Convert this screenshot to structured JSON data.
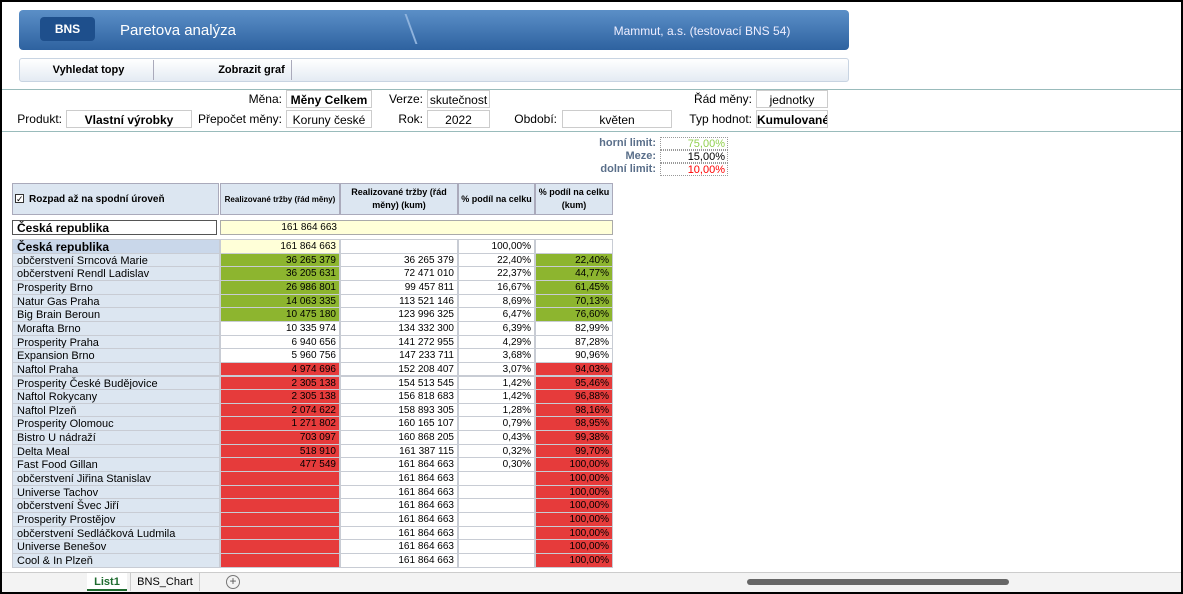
{
  "header": {
    "logo": "BNS",
    "title": "Paretova analýza",
    "company": "Mammut, a.s. (testovací BNS 54)"
  },
  "toolbar": [
    "Vyhledat topy",
    "Zobrazit graf"
  ],
  "filters": [
    {
      "label": "Měna:",
      "value": "Měny Celkem"
    },
    {
      "label": "Verze:",
      "value": "skutečnost"
    },
    {
      "label": "Řád měny:",
      "value": "jednotky"
    },
    {
      "label": "Produkt:",
      "value": "Vlastní výrobky"
    },
    {
      "label": "Přepočet měny:",
      "value": "Koruny české"
    },
    {
      "label": "Rok:",
      "value": "2022"
    },
    {
      "label": "Období:",
      "value": "květen"
    },
    {
      "label": "Typ hodnot:",
      "value": "Kumulované"
    }
  ],
  "limits": [
    {
      "label": "horní limit:",
      "value": "75,00%",
      "color": "#92d050"
    },
    {
      "label": "Meze:",
      "value": "15,00%",
      "color": "#000000"
    },
    {
      "label": "dolní limit:",
      "value": "10,00%",
      "color": "#ff0000"
    }
  ],
  "table": {
    "option": "Rozpad až na spodní úroveň",
    "columns": [
      "Realizované tržby (řád měny)",
      "Realizované tržby (řád měny) (kum)",
      "% podíl na celku",
      "% podíl na celku (kum)"
    ],
    "summary": {
      "label": "Česká republika",
      "value": "161 864 663"
    },
    "group": [
      "Česká republika",
      "161 864 663",
      null,
      "100,00%",
      null
    ],
    "rows": [
      {
        "cells": [
          "občerstvení Srncová Marie",
          "36 265 379",
          "36 265 379",
          "22,40%",
          "22,40%"
        ],
        "fills": [
          "#8db52f",
          "#8db52f"
        ]
      },
      {
        "cells": [
          "občerstvení Rendl Ladislav",
          "36 205 631",
          "72 471 010",
          "22,37%",
          "44,77%"
        ],
        "fills": [
          "#8db52f",
          "#8db52f"
        ]
      },
      {
        "cells": [
          "Prosperity Brno",
          "26 986 801",
          "99 457 811",
          "16,67%",
          "61,45%"
        ],
        "fills": [
          "#8db52f",
          "#8db52f"
        ]
      },
      {
        "cells": [
          "Natur Gas Praha",
          "14 063 335",
          "113 521 146",
          "8,69%",
          "70,13%"
        ],
        "fills": [
          "#8db52f",
          "#8db52f"
        ]
      },
      {
        "cells": [
          "Big Brain Beroun",
          "10 475 180",
          "123 996 325",
          "6,47%",
          "76,60%"
        ],
        "fills": [
          "#8db52f",
          "#8db52f"
        ]
      },
      {
        "cells": [
          "Morafta Brno",
          "10 335 974",
          "134 332 300",
          "6,39%",
          "82,99%"
        ],
        "fills": [
          "#ffffff",
          "#ffffff"
        ]
      },
      {
        "cells": [
          "Prosperity Praha",
          "6 940 656",
          "141 272 955",
          "4,29%",
          "87,28%"
        ],
        "fills": [
          "#ffffff",
          "#ffffff"
        ]
      },
      {
        "cells": [
          "Expansion Brno",
          "5 960 756",
          "147 233 711",
          "3,68%",
          "90,96%"
        ],
        "fills": [
          "#ffffff",
          "#ffffff"
        ]
      },
      {
        "cells": [
          "Naftol Praha",
          "4 974 696",
          "152 208 407",
          "3,07%",
          "94,03%"
        ],
        "fills": [
          "#e63b3b",
          "#e63b3b"
        ]
      },
      {
        "cells": [
          "Prosperity České Budějovice",
          "2 305 138",
          "154 513 545",
          "1,42%",
          "95,46%"
        ],
        "fills": [
          "#e63b3b",
          "#e63b3b"
        ]
      },
      {
        "cells": [
          "Naftol Rokycany",
          "2 305 138",
          "156 818 683",
          "1,42%",
          "96,88%"
        ],
        "fills": [
          "#e63b3b",
          "#e63b3b"
        ]
      },
      {
        "cells": [
          "Naftol Plzeň",
          "2 074 622",
          "158 893 305",
          "1,28%",
          "98,16%"
        ],
        "fills": [
          "#e63b3b",
          "#e63b3b"
        ]
      },
      {
        "cells": [
          "Prosperity Olomouc",
          "1 271 802",
          "160 165 107",
          "0,79%",
          "98,95%"
        ],
        "fills": [
          "#e63b3b",
          "#e63b3b"
        ]
      },
      {
        "cells": [
          "Bistro U nádraží",
          "703 097",
          "160 868 205",
          "0,43%",
          "99,38%"
        ],
        "fills": [
          "#e63b3b",
          "#e63b3b"
        ]
      },
      {
        "cells": [
          "Delta Meal",
          "518 910",
          "161 387 115",
          "0,32%",
          "99,70%"
        ],
        "fills": [
          "#e63b3b",
          "#e63b3b"
        ]
      },
      {
        "cells": [
          "Fast Food Gillan",
          "477 549",
          "161 864 663",
          "0,30%",
          "100,00%"
        ],
        "fills": [
          "#e63b3b",
          "#e63b3b"
        ]
      },
      {
        "cells": [
          "občerstvení Jiřina Stanislav",
          null,
          "161 864 663",
          null,
          "100,00%"
        ],
        "fills": [
          "#e63b3b",
          "#e63b3b"
        ]
      },
      {
        "cells": [
          "Universe Tachov",
          null,
          "161 864 663",
          null,
          "100,00%"
        ],
        "fills": [
          "#e63b3b",
          "#e63b3b"
        ]
      },
      {
        "cells": [
          "občerstvení Švec Jiří",
          null,
          "161 864 663",
          null,
          "100,00%"
        ],
        "fills": [
          "#e63b3b",
          "#e63b3b"
        ]
      },
      {
        "cells": [
          "Prosperity Prostějov",
          null,
          "161 864 663",
          null,
          "100,00%"
        ],
        "fills": [
          "#e63b3b",
          "#e63b3b"
        ]
      },
      {
        "cells": [
          "občerstvení Sedláčková Ludmila",
          null,
          "161 864 663",
          null,
          "100,00%"
        ],
        "fills": [
          "#e63b3b",
          "#e63b3b"
        ]
      },
      {
        "cells": [
          "Universe Benešov",
          null,
          "161 864 663",
          null,
          "100,00%"
        ],
        "fills": [
          "#e63b3b",
          "#e63b3b"
        ]
      },
      {
        "cells": [
          "Cool & In Plzeň",
          null,
          "161 864 663",
          null,
          "100,00%"
        ],
        "fills": [
          "#e63b3b",
          "#e63b3b"
        ]
      }
    ]
  },
  "tabs": [
    "List1",
    "BNS_Chart"
  ]
}
